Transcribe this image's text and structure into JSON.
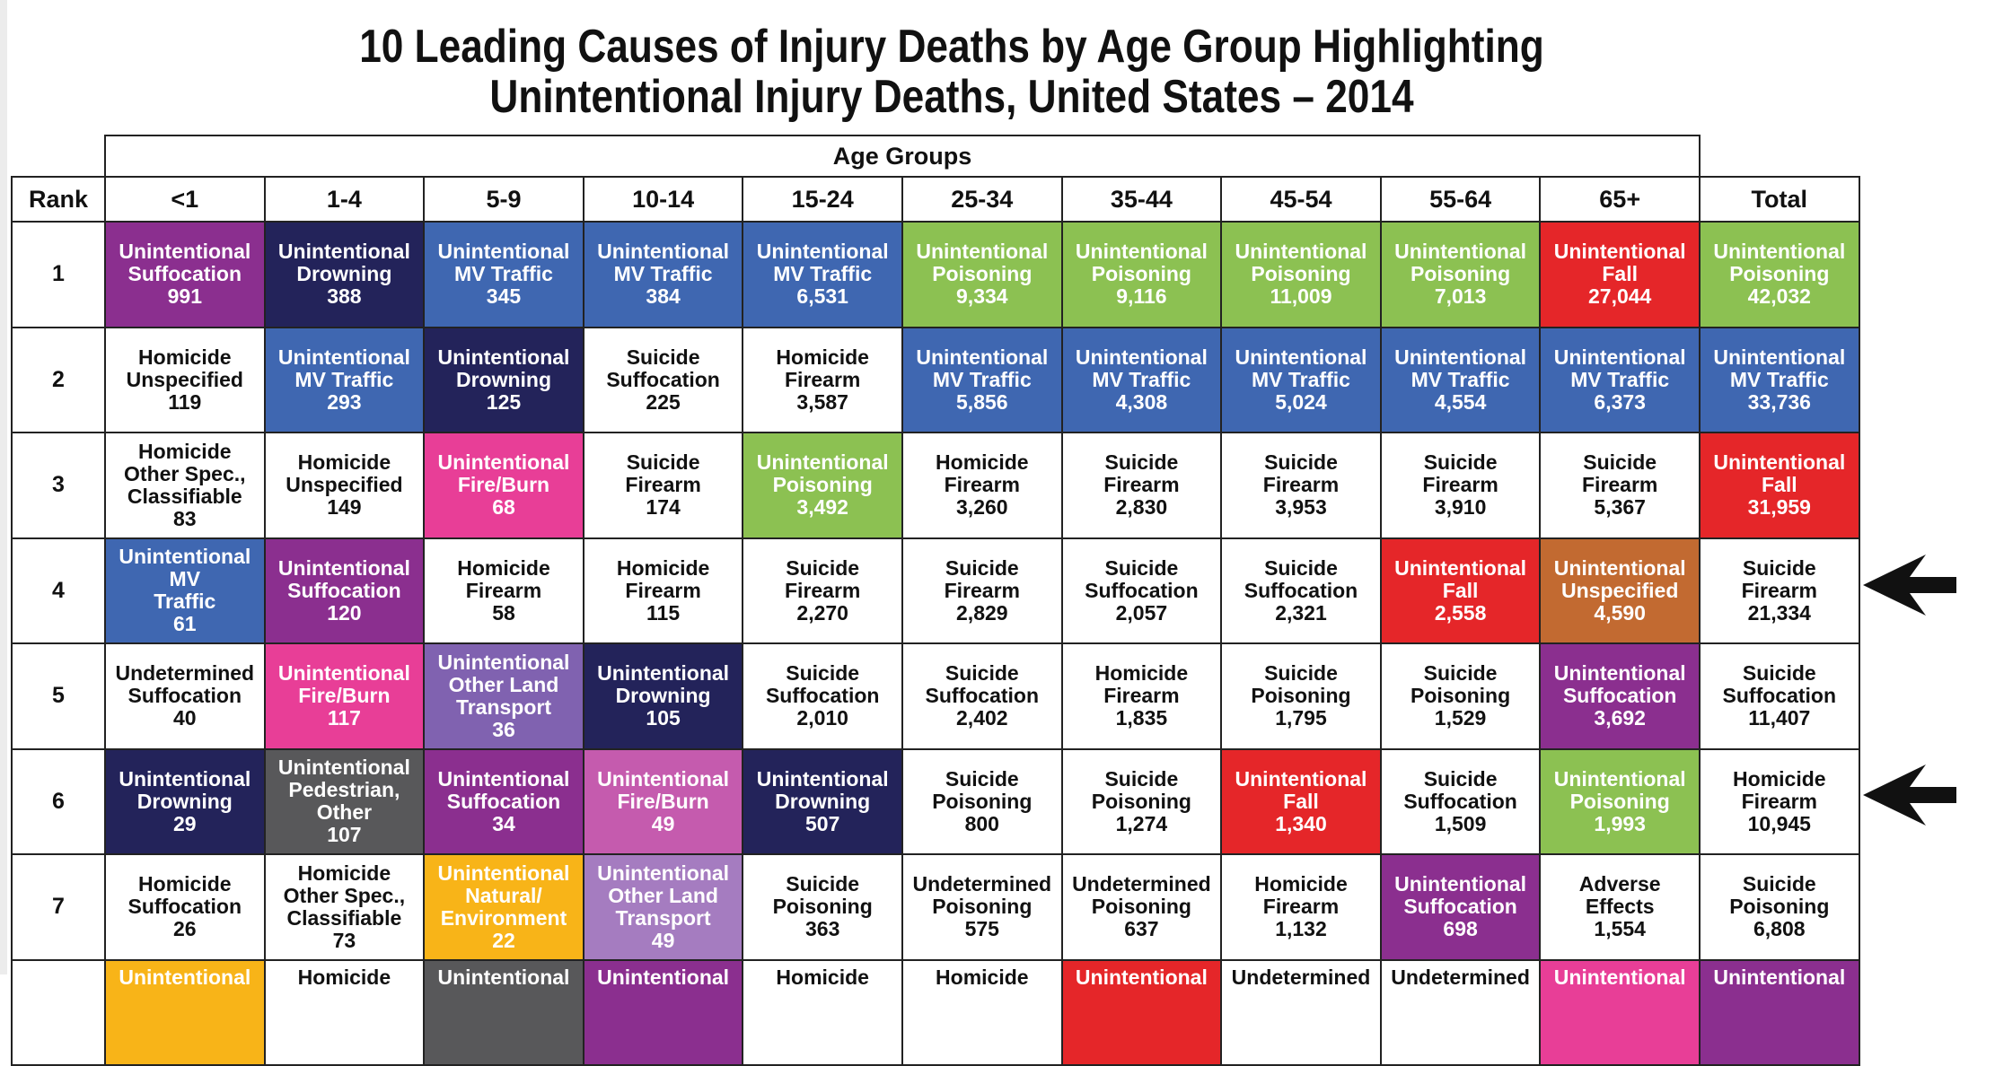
{
  "title_line1": "10 Leading Causes of Injury Deaths by Age Group Highlighting",
  "title_line2": "Unintentional Injury Deaths, United States – 2014",
  "age_groups_label": "Age Groups",
  "rank_label": "Rank",
  "columns": [
    "<1",
    "1-4",
    "5-9",
    "10-14",
    "15-24",
    "25-34",
    "35-44",
    "45-54",
    "55-64",
    "65+",
    "Total"
  ],
  "colors": {
    "white": "#ffffff",
    "suffocation": "#8b2f8f",
    "drowning": "#23235a",
    "mv_traffic": "#3f67b1",
    "poisoning": "#8cc152",
    "fall": "#e52629",
    "fire_burn": "#e83e97",
    "other_land_transport": "#8062b0",
    "other_land_transport_light": "#a57cc0",
    "fire_burn_light": "#c55bae",
    "pedestrian_other": "#58585a",
    "natural_environment": "#f8b418",
    "unspecified": "#c26a31"
  },
  "rows": [
    {
      "rank": "1",
      "cells": [
        {
          "lines": [
            "Unintentional",
            "Suffocation",
            "991"
          ],
          "color": "suffocation"
        },
        {
          "lines": [
            "Unintentional",
            "Drowning",
            "388"
          ],
          "color": "drowning"
        },
        {
          "lines": [
            "Unintentional",
            "MV Traffic",
            "345"
          ],
          "color": "mv_traffic"
        },
        {
          "lines": [
            "Unintentional",
            "MV Traffic",
            "384"
          ],
          "color": "mv_traffic"
        },
        {
          "lines": [
            "Unintentional",
            "MV Traffic",
            "6,531"
          ],
          "color": "mv_traffic"
        },
        {
          "lines": [
            "Unintentional",
            "Poisoning",
            "9,334"
          ],
          "color": "poisoning"
        },
        {
          "lines": [
            "Unintentional",
            "Poisoning",
            "9,116"
          ],
          "color": "poisoning"
        },
        {
          "lines": [
            "Unintentional",
            "Poisoning",
            "11,009"
          ],
          "color": "poisoning"
        },
        {
          "lines": [
            "Unintentional",
            "Poisoning",
            "7,013"
          ],
          "color": "poisoning"
        },
        {
          "lines": [
            "Unintentional",
            "Fall",
            "27,044"
          ],
          "color": "fall"
        },
        {
          "lines": [
            "Unintentional",
            "Poisoning",
            "42,032"
          ],
          "color": "poisoning"
        }
      ]
    },
    {
      "rank": "2",
      "cells": [
        {
          "lines": [
            "Homicide",
            "Unspecified",
            "119"
          ],
          "color": "white"
        },
        {
          "lines": [
            "Unintentional",
            "MV Traffic",
            "293"
          ],
          "color": "mv_traffic"
        },
        {
          "lines": [
            "Unintentional",
            "Drowning",
            "125"
          ],
          "color": "drowning"
        },
        {
          "lines": [
            "Suicide",
            "Suffocation",
            "225"
          ],
          "color": "white"
        },
        {
          "lines": [
            "Homicide",
            "Firearm",
            "3,587"
          ],
          "color": "white"
        },
        {
          "lines": [
            "Unintentional",
            "MV Traffic",
            "5,856"
          ],
          "color": "mv_traffic"
        },
        {
          "lines": [
            "Unintentional",
            "MV Traffic",
            "4,308"
          ],
          "color": "mv_traffic"
        },
        {
          "lines": [
            "Unintentional",
            "MV Traffic",
            "5,024"
          ],
          "color": "mv_traffic"
        },
        {
          "lines": [
            "Unintentional",
            "MV Traffic",
            "4,554"
          ],
          "color": "mv_traffic"
        },
        {
          "lines": [
            "Unintentional",
            "MV Traffic",
            "6,373"
          ],
          "color": "mv_traffic"
        },
        {
          "lines": [
            "Unintentional",
            "MV Traffic",
            "33,736"
          ],
          "color": "mv_traffic"
        }
      ]
    },
    {
      "rank": "3",
      "cells": [
        {
          "lines": [
            "Homicide",
            "Other Spec.,",
            "Classifiable",
            "83"
          ],
          "color": "white"
        },
        {
          "lines": [
            "Homicide",
            "Unspecified",
            "149"
          ],
          "color": "white"
        },
        {
          "lines": [
            "Unintentional",
            "Fire/Burn",
            "68"
          ],
          "color": "fire_burn"
        },
        {
          "lines": [
            "Suicide",
            "Firearm",
            "174"
          ],
          "color": "white"
        },
        {
          "lines": [
            "Unintentional",
            "Poisoning",
            "3,492"
          ],
          "color": "poisoning"
        },
        {
          "lines": [
            "Homicide",
            "Firearm",
            "3,260"
          ],
          "color": "white"
        },
        {
          "lines": [
            "Suicide",
            "Firearm",
            "2,830"
          ],
          "color": "white"
        },
        {
          "lines": [
            "Suicide",
            "Firearm",
            "3,953"
          ],
          "color": "white"
        },
        {
          "lines": [
            "Suicide",
            "Firearm",
            "3,910"
          ],
          "color": "white"
        },
        {
          "lines": [
            "Suicide",
            "Firearm",
            "5,367"
          ],
          "color": "white"
        },
        {
          "lines": [
            "Unintentional",
            "Fall",
            "31,959"
          ],
          "color": "fall"
        }
      ]
    },
    {
      "rank": "4",
      "cells": [
        {
          "lines": [
            "Unintentional MV",
            "Traffic",
            "61"
          ],
          "color": "mv_traffic"
        },
        {
          "lines": [
            "Unintentional",
            "Suffocation",
            "120"
          ],
          "color": "suffocation"
        },
        {
          "lines": [
            "Homicide",
            "Firearm",
            "58"
          ],
          "color": "white"
        },
        {
          "lines": [
            "Homicide",
            "Firearm",
            "115"
          ],
          "color": "white"
        },
        {
          "lines": [
            "Suicide",
            "Firearm",
            "2,270"
          ],
          "color": "white"
        },
        {
          "lines": [
            "Suicide",
            "Firearm",
            "2,829"
          ],
          "color": "white"
        },
        {
          "lines": [
            "Suicide",
            "Suffocation",
            "2,057"
          ],
          "color": "white"
        },
        {
          "lines": [
            "Suicide",
            "Suffocation",
            "2,321"
          ],
          "color": "white"
        },
        {
          "lines": [
            "Unintentional",
            "Fall",
            "2,558"
          ],
          "color": "fall"
        },
        {
          "lines": [
            "Unintentional",
            "Unspecified",
            "4,590"
          ],
          "color": "unspecified"
        },
        {
          "lines": [
            "Suicide",
            "Firearm",
            "21,334"
          ],
          "color": "white"
        }
      ]
    },
    {
      "rank": "5",
      "cells": [
        {
          "lines": [
            "Undetermined",
            "Suffocation",
            "40"
          ],
          "color": "white"
        },
        {
          "lines": [
            "Unintentional",
            "Fire/Burn",
            "117"
          ],
          "color": "fire_burn"
        },
        {
          "lines": [
            "Unintentional",
            "Other Land",
            "Transport",
            "36"
          ],
          "color": "other_land_transport"
        },
        {
          "lines": [
            "Unintentional",
            "Drowning",
            "105"
          ],
          "color": "drowning"
        },
        {
          "lines": [
            "Suicide",
            "Suffocation",
            "2,010"
          ],
          "color": "white"
        },
        {
          "lines": [
            "Suicide",
            "Suffocation",
            "2,402"
          ],
          "color": "white"
        },
        {
          "lines": [
            "Homicide",
            "Firearm",
            "1,835"
          ],
          "color": "white"
        },
        {
          "lines": [
            "Suicide",
            "Poisoning",
            "1,795"
          ],
          "color": "white"
        },
        {
          "lines": [
            "Suicide",
            "Poisoning",
            "1,529"
          ],
          "color": "white"
        },
        {
          "lines": [
            "Unintentional",
            "Suffocation",
            "3,692"
          ],
          "color": "suffocation"
        },
        {
          "lines": [
            "Suicide",
            "Suffocation",
            "11,407"
          ],
          "color": "white"
        }
      ]
    },
    {
      "rank": "6",
      "cells": [
        {
          "lines": [
            "Unintentional",
            "Drowning",
            "29"
          ],
          "color": "drowning"
        },
        {
          "lines": [
            "Unintentional",
            "Pedestrian,",
            "Other",
            "107"
          ],
          "color": "pedestrian_other"
        },
        {
          "lines": [
            "Unintentional",
            "Suffocation",
            "34"
          ],
          "color": "suffocation"
        },
        {
          "lines": [
            "Unintentional",
            "Fire/Burn",
            "49"
          ],
          "color": "fire_burn_light"
        },
        {
          "lines": [
            "Unintentional",
            "Drowning",
            "507"
          ],
          "color": "drowning"
        },
        {
          "lines": [
            "Suicide",
            "Poisoning",
            "800"
          ],
          "color": "white"
        },
        {
          "lines": [
            "Suicide",
            "Poisoning",
            "1,274"
          ],
          "color": "white"
        },
        {
          "lines": [
            "Unintentional",
            "Fall",
            "1,340"
          ],
          "color": "fall"
        },
        {
          "lines": [
            "Suicide",
            "Suffocation",
            "1,509"
          ],
          "color": "white"
        },
        {
          "lines": [
            "Unintentional",
            "Poisoning",
            "1,993"
          ],
          "color": "poisoning"
        },
        {
          "lines": [
            "Homicide",
            "Firearm",
            "10,945"
          ],
          "color": "white"
        }
      ]
    },
    {
      "rank": "7",
      "cells": [
        {
          "lines": [
            "Homicide",
            "Suffocation",
            "26"
          ],
          "color": "white"
        },
        {
          "lines": [
            "Homicide",
            "Other Spec.,",
            "Classifiable",
            "73"
          ],
          "color": "white"
        },
        {
          "lines": [
            "Unintentional",
            "Natural/",
            "Environment",
            "22"
          ],
          "color": "natural_environment"
        },
        {
          "lines": [
            "Unintentional",
            "Other Land",
            "Transport",
            "49"
          ],
          "color": "other_land_transport_light"
        },
        {
          "lines": [
            "Suicide",
            "Poisoning",
            "363"
          ],
          "color": "white"
        },
        {
          "lines": [
            "Undetermined",
            "Poisoning",
            "575"
          ],
          "color": "white"
        },
        {
          "lines": [
            "Undetermined",
            "Poisoning",
            "637"
          ],
          "color": "white"
        },
        {
          "lines": [
            "Homicide",
            "Firearm",
            "1,132"
          ],
          "color": "white"
        },
        {
          "lines": [
            "Unintentional",
            "Suffocation",
            "698"
          ],
          "color": "suffocation"
        },
        {
          "lines": [
            "Adverse",
            "Effects",
            "1,554"
          ],
          "color": "white"
        },
        {
          "lines": [
            "Suicide",
            "Poisoning",
            "6,808"
          ],
          "color": "white"
        }
      ]
    },
    {
      "rank": "",
      "cells": [
        {
          "lines": [
            "Unintentional"
          ],
          "color": "natural_environment"
        },
        {
          "lines": [
            "Homicide"
          ],
          "color": "white"
        },
        {
          "lines": [
            "Unintentional"
          ],
          "color": "pedestrian_other"
        },
        {
          "lines": [
            "Unintentional"
          ],
          "color": "suffocation"
        },
        {
          "lines": [
            "Homicide"
          ],
          "color": "white"
        },
        {
          "lines": [
            "Homicide"
          ],
          "color": "white"
        },
        {
          "lines": [
            "Unintentional"
          ],
          "color": "fall"
        },
        {
          "lines": [
            "Undetermined"
          ],
          "color": "white"
        },
        {
          "lines": [
            "Undetermined"
          ],
          "color": "white"
        },
        {
          "lines": [
            "Unintentional"
          ],
          "color": "fire_burn"
        },
        {
          "lines": [
            "Unintentional"
          ],
          "color": "suffocation"
        }
      ]
    }
  ],
  "arrow_icons": [
    "arrow-left-icon",
    "arrow-left-icon"
  ]
}
